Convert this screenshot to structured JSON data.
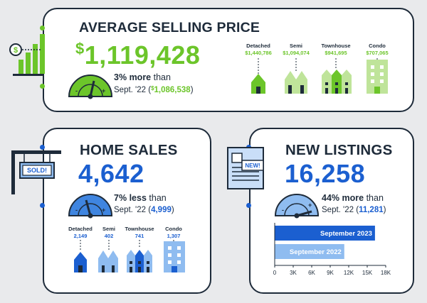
{
  "colors": {
    "navy": "#1e2b3a",
    "green": "#6cc52a",
    "light_green": "#bfe49a",
    "blue": "#1b5fd0",
    "mid_blue": "#3f85e0",
    "light_blue": "#8fbcf0",
    "pale_blue": "#c9def8"
  },
  "price": {
    "title": "AVERAGE SELLING PRICE",
    "currency": "$",
    "value": "1,119,428",
    "pct": "3%",
    "direction": "more",
    "than": "than",
    "compare_label": "Sept. '22",
    "compare_currency": "$",
    "compare_value": "1,086,538",
    "icon": "dollar-bar-chart-icon",
    "gauge_icon": "gauge-icon",
    "types": [
      {
        "label": "Detached",
        "value": "$1,440,786",
        "icon": "detached-house-icon"
      },
      {
        "label": "Semi",
        "value": "$1,094,074",
        "icon": "semi-house-icon"
      },
      {
        "label": "Townhouse",
        "value": "$941,695",
        "icon": "townhouse-icon"
      },
      {
        "label": "Condo",
        "value": "$707,065",
        "icon": "condo-icon"
      }
    ]
  },
  "sales": {
    "title": "HOME SALES",
    "value": "4,642",
    "pct": "7%",
    "direction": "less",
    "than": "than",
    "compare_label": "Sept. '22",
    "compare_value": "4,999",
    "sign": "SOLD!",
    "icon": "sold-sign-icon",
    "types": [
      {
        "label": "Detached",
        "value": "2,149",
        "icon": "detached-house-icon"
      },
      {
        "label": "Semi",
        "value": "402",
        "icon": "semi-house-icon"
      },
      {
        "label": "Townhouse",
        "value": "741",
        "icon": "townhouse-icon"
      },
      {
        "label": "Condo",
        "value": "1,307",
        "icon": "condo-icon"
      }
    ]
  },
  "listings": {
    "title": "NEW LISTINGS",
    "value": "16,258",
    "pct": "44%",
    "direction": "more",
    "than": "than",
    "compare_label": "Sept. '22",
    "compare_value": "11,281",
    "icon": "newspaper-icon",
    "badge": "NEW!"
  },
  "chart_data": {
    "type": "bar",
    "orientation": "horizontal",
    "categories": [
      "September 2023",
      "September 2022"
    ],
    "values": [
      16258,
      11281
    ],
    "xlim": [
      0,
      18000
    ],
    "xticks": [
      "0",
      "3K",
      "6K",
      "9K",
      "12K",
      "15K",
      "18K"
    ],
    "grid": false
  }
}
